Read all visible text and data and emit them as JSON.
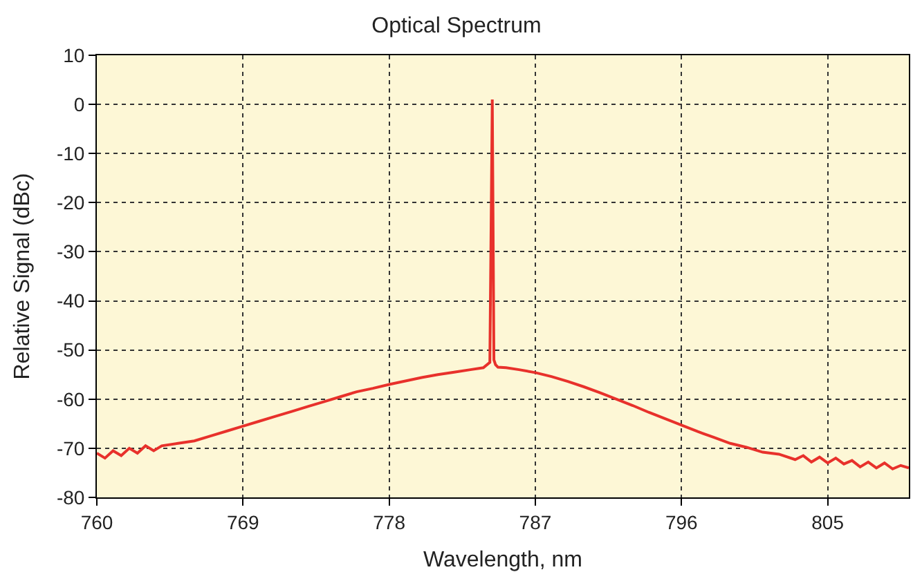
{
  "chart_data": {
    "type": "line",
    "title": "Optical Spectrum",
    "xlabel": "Wavelength, nm",
    "ylabel": "Relative Signal (dBc)",
    "xlim": [
      760,
      810
    ],
    "xticks": [
      760,
      769,
      778,
      787,
      796,
      805
    ],
    "ylim": [
      -80,
      10
    ],
    "yticks": [
      10,
      0,
      -10,
      -20,
      -30,
      -40,
      -50,
      -60,
      -70,
      -80
    ],
    "grid": true,
    "line_style": "solid",
    "marker": "none",
    "series": [
      {
        "color": "#e8312b",
        "x": [
          760,
          760.5,
          761,
          761.5,
          762,
          762.5,
          763,
          763.5,
          764,
          765,
          766,
          767,
          768,
          769,
          770,
          771,
          772,
          773,
          774,
          775,
          776,
          777,
          778,
          779,
          780,
          781,
          782,
          783,
          783.8,
          784.2,
          784.35,
          784.45,
          784.55,
          784.7,
          785.2,
          786,
          787,
          788,
          789,
          790,
          791,
          792,
          793,
          794,
          795,
          796,
          797,
          798,
          799,
          800,
          801,
          802,
          803,
          803.5,
          804,
          804.5,
          805,
          805.5,
          806,
          806.5,
          807,
          807.5,
          808,
          808.5,
          809,
          809.5,
          810
        ],
        "values": [
          -71,
          -72,
          -70.5,
          -71.5,
          -70,
          -71,
          -69.5,
          -70.5,
          -69.5,
          -69,
          -68.5,
          -67.5,
          -66.5,
          -65.5,
          -64.5,
          -63.5,
          -62.5,
          -61.5,
          -60.5,
          -59.5,
          -58.5,
          -57.8,
          -57,
          -56.3,
          -55.6,
          -55,
          -54.5,
          -54,
          -53.6,
          -52.5,
          1,
          -52,
          -53,
          -53.5,
          -53.6,
          -54,
          -54.6,
          -55.4,
          -56.4,
          -57.5,
          -58.7,
          -60,
          -61.3,
          -62.7,
          -64,
          -65.3,
          -66.6,
          -67.8,
          -69,
          -69.8,
          -70.8,
          -71.2,
          -72.3,
          -71.5,
          -72.8,
          -71.8,
          -73,
          -72,
          -73.2,
          -72.5,
          -73.8,
          -72.8,
          -74,
          -73,
          -74.2,
          -73.5,
          -74
        ]
      }
    ]
  }
}
